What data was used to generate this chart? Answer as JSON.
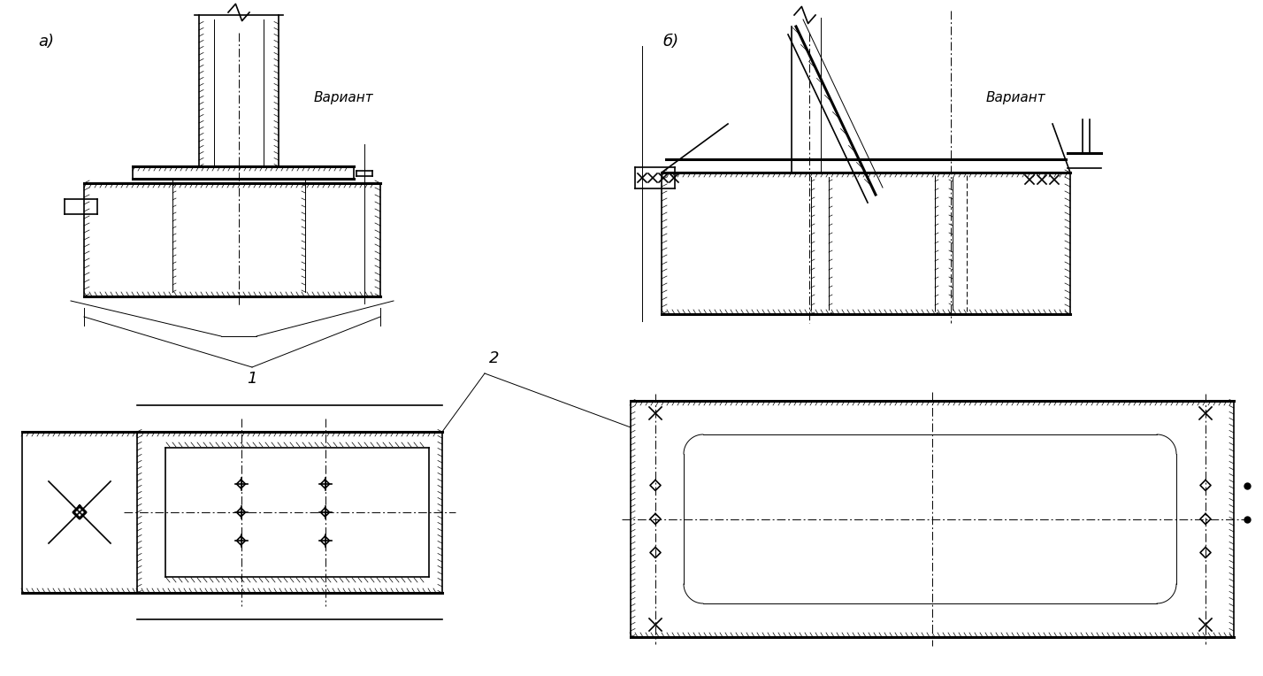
{
  "bg_color": "#ffffff",
  "line_color": "#000000",
  "label_a": "a)",
  "label_b": "б)",
  "label_variantA": "Вариант",
  "label_variantB": "Вариант",
  "label_1": "1",
  "label_2": "2"
}
